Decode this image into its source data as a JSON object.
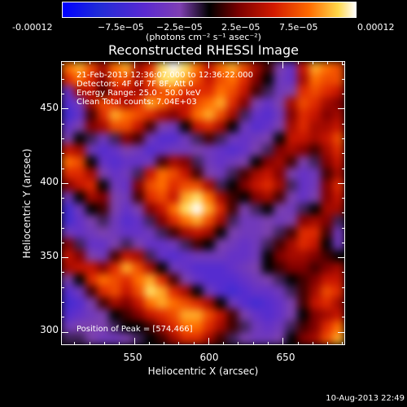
{
  "chart_data": {
    "type": "heatmap",
    "title": "Reconstructed RHESSI Image",
    "xlabel": "Heliocentric X (arcsec)",
    "ylabel": "Heliocentric Y (arcsec)",
    "xlim": [
      501,
      692
    ],
    "ylim": [
      291,
      482
    ],
    "x_ticks": [
      550,
      600,
      650
    ],
    "y_ticks": [
      300,
      350,
      400,
      450
    ],
    "colorbar": {
      "ticks": [
        "-0.00012",
        "−7.5e−05",
        "−2.5e−05",
        "2.5e−05",
        "7.5e−05",
        "0.00012"
      ],
      "unit_label": "(photons cm⁻² s⁻¹ asec⁻²)",
      "range": [
        -0.00012,
        0.00012
      ]
    },
    "annotations": {
      "line1": "21-Feb-2013 12:36:07.000 to 12:36:22.000",
      "line2": "Detectors: 4F 6F 7F 8F, Att 0",
      "line3": "Energy Range: 25.0 - 50.0 keV",
      "line4": "Clean     Total counts: 7.04E+03",
      "peak": "Position of Peak = [574,466]"
    },
    "rows_top_to_bottom": [
      [
        0.7,
        0.8,
        0.6,
        0.3,
        0.7,
        0.8,
        0.3,
        0.5,
        0.9,
        1.0,
        0.9,
        0.7,
        0.4,
        0.7,
        0.8,
        0.6,
        0.3,
        0.1,
        -0.2,
        -0.4,
        0.4,
        0.8,
        0.7,
        0.6
      ],
      [
        0.5,
        0.7,
        0.5,
        0.2,
        0.6,
        0.6,
        0.3,
        0.6,
        0.9,
        0.9,
        0.8,
        0.6,
        0.4,
        0.6,
        0.7,
        0.5,
        0.2,
        0.0,
        -0.3,
        -0.4,
        0.3,
        0.7,
        0.6,
        0.6
      ],
      [
        -0.4,
        0.3,
        0.4,
        0.1,
        0.4,
        0.4,
        0.3,
        0.5,
        0.6,
        0.7,
        0.5,
        0.5,
        0.5,
        0.7,
        0.6,
        0.4,
        0.1,
        -0.1,
        -0.3,
        -0.2,
        0.5,
        0.6,
        0.5,
        0.4
      ],
      [
        -0.5,
        -0.3,
        0.3,
        0.6,
        0.5,
        0.3,
        0.5,
        0.8,
        0.7,
        0.5,
        0.4,
        0.6,
        0.7,
        0.8,
        0.5,
        0.2,
        -0.2,
        -0.4,
        -0.2,
        0.3,
        0.6,
        0.5,
        0.3,
        0.2
      ],
      [
        -0.6,
        -0.4,
        0.1,
        0.5,
        0.8,
        0.7,
        0.6,
        0.5,
        0.3,
        0.2,
        0.4,
        0.7,
        0.8,
        0.6,
        0.3,
        -0.1,
        -0.4,
        -0.5,
        -0.3,
        0.2,
        0.5,
        0.4,
        0.2,
        0.3
      ],
      [
        -0.4,
        -0.2,
        0.2,
        0.3,
        0.6,
        0.6,
        0.4,
        0.1,
        -0.2,
        -0.3,
        0.0,
        0.4,
        0.5,
        0.3,
        0.0,
        -0.3,
        -0.5,
        -0.4,
        -0.2,
        0.3,
        0.5,
        0.3,
        0.3,
        0.4
      ],
      [
        -0.2,
        0.0,
        -0.1,
        -0.3,
        -0.1,
        0.2,
        0.1,
        -0.3,
        -0.5,
        -0.5,
        -0.3,
        -0.1,
        0.1,
        -0.1,
        -0.3,
        -0.4,
        -0.3,
        -0.2,
        0.0,
        0.4,
        0.4,
        0.3,
        0.4,
        0.6
      ],
      [
        0.4,
        0.3,
        -0.3,
        -0.5,
        -0.4,
        -0.2,
        -0.3,
        -0.5,
        -0.4,
        -0.3,
        -0.3,
        -0.2,
        -0.3,
        -0.4,
        -0.5,
        -0.4,
        -0.2,
        -0.1,
        0.2,
        0.3,
        0.2,
        0.1,
        0.3,
        0.5
      ],
      [
        0.7,
        0.6,
        0.0,
        -0.4,
        -0.5,
        -0.4,
        -0.4,
        -0.3,
        0.1,
        0.3,
        0.2,
        -0.1,
        -0.3,
        -0.4,
        -0.3,
        -0.2,
        0.0,
        0.2,
        0.3,
        0.1,
        -0.2,
        -0.1,
        0.2,
        0.4
      ],
      [
        0.5,
        0.5,
        0.3,
        -0.2,
        -0.4,
        -0.3,
        -0.1,
        0.4,
        0.7,
        0.6,
        0.4,
        0.1,
        -0.2,
        -0.3,
        -0.1,
        0.1,
        0.3,
        0.4,
        0.2,
        -0.2,
        -0.4,
        -0.3,
        0.1,
        0.3
      ],
      [
        0.2,
        0.4,
        0.5,
        0.0,
        -0.3,
        -0.4,
        0.2,
        0.6,
        0.7,
        0.5,
        0.6,
        0.6,
        0.3,
        -0.1,
        0.0,
        0.2,
        0.4,
        0.5,
        0.3,
        -0.1,
        -0.4,
        -0.3,
        0.2,
        0.5
      ],
      [
        -0.3,
        0.0,
        0.3,
        0.2,
        -0.2,
        -0.3,
        0.1,
        0.5,
        0.6,
        0.4,
        0.8,
        0.9,
        0.7,
        0.3,
        0.1,
        0.0,
        0.2,
        0.3,
        0.1,
        -0.2,
        -0.4,
        -0.2,
        0.2,
        0.4
      ],
      [
        -0.6,
        -0.3,
        0.0,
        0.1,
        -0.2,
        -0.4,
        -0.2,
        0.2,
        0.4,
        0.7,
        0.9,
        1.0,
        0.8,
        0.5,
        0.1,
        -0.2,
        -0.1,
        0.0,
        -0.2,
        -0.3,
        -0.1,
        0.0,
        0.3,
        0.3
      ],
      [
        -0.6,
        -0.4,
        -0.2,
        -0.1,
        -0.3,
        -0.5,
        -0.4,
        -0.1,
        0.2,
        0.5,
        0.7,
        0.8,
        0.6,
        0.3,
        -0.1,
        -0.3,
        -0.3,
        -0.2,
        -0.3,
        -0.2,
        0.2,
        0.3,
        0.2,
        -0.1
      ],
      [
        -0.3,
        -0.4,
        -0.3,
        -0.2,
        -0.3,
        -0.4,
        -0.4,
        -0.3,
        -0.1,
        0.1,
        0.3,
        0.4,
        0.3,
        0.0,
        -0.2,
        -0.3,
        -0.3,
        -0.2,
        -0.1,
        0.1,
        0.5,
        0.5,
        0.1,
        -0.3
      ],
      [
        0.2,
        -0.1,
        -0.4,
        -0.4,
        -0.2,
        -0.1,
        -0.2,
        -0.4,
        -0.4,
        -0.3,
        -0.1,
        0.1,
        0.0,
        -0.2,
        -0.3,
        -0.4,
        -0.3,
        -0.1,
        0.1,
        0.3,
        0.5,
        0.4,
        0.0,
        -0.3
      ],
      [
        0.4,
        0.2,
        -0.2,
        -0.3,
        0.1,
        0.4,
        0.3,
        -0.1,
        -0.4,
        -0.5,
        -0.4,
        -0.3,
        -0.3,
        -0.3,
        -0.4,
        -0.4,
        -0.3,
        0.0,
        0.2,
        0.3,
        0.3,
        0.2,
        0.1,
        0.0
      ],
      [
        0.3,
        0.4,
        0.4,
        0.2,
        0.5,
        0.8,
        0.6,
        0.3,
        0.0,
        -0.3,
        -0.4,
        -0.5,
        -0.5,
        -0.5,
        -0.4,
        -0.3,
        -0.2,
        0.0,
        0.1,
        0.2,
        0.2,
        0.1,
        0.2,
        0.3
      ],
      [
        -0.2,
        0.0,
        0.5,
        0.7,
        0.6,
        0.5,
        0.7,
        0.8,
        0.5,
        0.1,
        -0.2,
        -0.4,
        -0.5,
        -0.5,
        -0.5,
        -0.4,
        -0.3,
        -0.2,
        -0.1,
        0.0,
        0.1,
        0.2,
        0.4,
        0.4
      ],
      [
        -0.5,
        -0.3,
        0.1,
        0.5,
        0.6,
        0.4,
        0.6,
        0.9,
        0.8,
        0.5,
        0.3,
        0.0,
        -0.3,
        -0.5,
        -0.6,
        -0.5,
        -0.4,
        -0.4,
        -0.3,
        -0.1,
        0.1,
        0.3,
        0.6,
        0.5
      ],
      [
        -0.6,
        -0.5,
        -0.2,
        0.1,
        0.3,
        0.2,
        0.4,
        0.7,
        0.8,
        0.7,
        0.6,
        0.5,
        0.3,
        0.0,
        -0.3,
        -0.5,
        -0.6,
        -0.5,
        -0.4,
        -0.2,
        0.1,
        0.4,
        0.5,
        0.3
      ],
      [
        -0.5,
        -0.4,
        -0.3,
        -0.2,
        0.0,
        0.1,
        0.2,
        0.4,
        0.5,
        0.6,
        0.8,
        0.8,
        0.6,
        0.4,
        0.1,
        -0.2,
        -0.4,
        -0.5,
        -0.4,
        -0.2,
        0.0,
        0.2,
        0.3,
        0.4
      ],
      [
        -0.3,
        -0.2,
        -0.2,
        -0.2,
        -0.1,
        0.0,
        0.0,
        0.1,
        0.3,
        0.5,
        0.7,
        0.7,
        0.5,
        0.3,
        0.1,
        -0.1,
        -0.3,
        -0.4,
        -0.3,
        -0.1,
        0.1,
        0.2,
        0.5,
        0.7
      ],
      [
        -0.1,
        -0.1,
        -0.2,
        -0.3,
        -0.3,
        -0.2,
        -0.1,
        0.0,
        0.1,
        0.3,
        0.5,
        0.5,
        0.3,
        0.1,
        -0.1,
        -0.2,
        -0.3,
        -0.3,
        -0.2,
        0.0,
        0.2,
        0.3,
        0.6,
        0.8
      ]
    ]
  },
  "footer": {
    "timestamp": "10-Aug-2013 22:49"
  }
}
